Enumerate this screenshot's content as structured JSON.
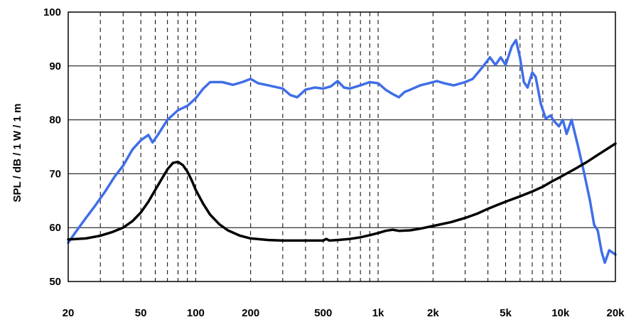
{
  "chart_data": {
    "type": "line",
    "xscale": "log",
    "xlim": [
      20,
      20000
    ],
    "ylim": [
      50,
      100
    ],
    "ylabel": "SPL / dB / 1 W / 1 m",
    "xlabel": "",
    "title": "",
    "grid": {
      "horizontal": "solid",
      "vertical_minor": "dashed"
    },
    "xtick_values": [
      20,
      50,
      100,
      200,
      500,
      1000,
      2000,
      5000,
      10000,
      20000
    ],
    "xtick_labels": [
      "20",
      "50",
      "100",
      "200",
      "500",
      "1k",
      "2k",
      "5k",
      "10k",
      "20k"
    ],
    "ytick_values": [
      50,
      60,
      70,
      80,
      90,
      100
    ],
    "ytick_labels": [
      "50",
      "60",
      "70",
      "80",
      "90",
      "100"
    ],
    "series": [
      {
        "color": "#3f6ee8",
        "points": [
          [
            20,
            57.2
          ],
          [
            22,
            59.2
          ],
          [
            25,
            61.8
          ],
          [
            28,
            64.0
          ],
          [
            32,
            66.8
          ],
          [
            36,
            69.5
          ],
          [
            40,
            71.5
          ],
          [
            45,
            74.5
          ],
          [
            50,
            76.2
          ],
          [
            55,
            77.2
          ],
          [
            58,
            75.8
          ],
          [
            62,
            77.2
          ],
          [
            70,
            80.0
          ],
          [
            80,
            81.8
          ],
          [
            90,
            82.6
          ],
          [
            100,
            84.0
          ],
          [
            110,
            85.8
          ],
          [
            120,
            87.0
          ],
          [
            140,
            87.0
          ],
          [
            160,
            86.5
          ],
          [
            180,
            87.0
          ],
          [
            200,
            87.6
          ],
          [
            220,
            86.8
          ],
          [
            250,
            86.4
          ],
          [
            300,
            85.8
          ],
          [
            330,
            84.6
          ],
          [
            360,
            84.2
          ],
          [
            400,
            85.6
          ],
          [
            450,
            86.0
          ],
          [
            500,
            85.8
          ],
          [
            550,
            86.2
          ],
          [
            600,
            87.2
          ],
          [
            650,
            86.0
          ],
          [
            700,
            85.8
          ],
          [
            800,
            86.4
          ],
          [
            900,
            87.0
          ],
          [
            1000,
            86.8
          ],
          [
            1100,
            85.6
          ],
          [
            1200,
            84.8
          ],
          [
            1300,
            84.2
          ],
          [
            1400,
            85.2
          ],
          [
            1500,
            85.6
          ],
          [
            1700,
            86.4
          ],
          [
            1900,
            86.8
          ],
          [
            2100,
            87.2
          ],
          [
            2300,
            86.8
          ],
          [
            2600,
            86.4
          ],
          [
            3000,
            87.0
          ],
          [
            3300,
            87.6
          ],
          [
            3700,
            89.6
          ],
          [
            4100,
            91.6
          ],
          [
            4400,
            90.2
          ],
          [
            4700,
            91.6
          ],
          [
            5000,
            90.2
          ],
          [
            5400,
            93.6
          ],
          [
            5700,
            94.8
          ],
          [
            6000,
            91.5
          ],
          [
            6300,
            87.0
          ],
          [
            6600,
            86.0
          ],
          [
            7000,
            88.8
          ],
          [
            7300,
            88.0
          ],
          [
            7800,
            83.0
          ],
          [
            8300,
            80.2
          ],
          [
            8800,
            80.8
          ],
          [
            9200,
            79.8
          ],
          [
            9800,
            78.8
          ],
          [
            10300,
            80.0
          ],
          [
            10800,
            77.4
          ],
          [
            11500,
            80.0
          ],
          [
            12500,
            75.0
          ],
          [
            13500,
            70.0
          ],
          [
            14500,
            65.0
          ],
          [
            15300,
            60.5
          ],
          [
            16000,
            59.5
          ],
          [
            16800,
            55.5
          ],
          [
            17500,
            53.5
          ],
          [
            18500,
            55.8
          ],
          [
            20000,
            55.0
          ]
        ]
      },
      {
        "color": "#000000",
        "points": [
          [
            20,
            57.8
          ],
          [
            25,
            58.0
          ],
          [
            30,
            58.5
          ],
          [
            35,
            59.2
          ],
          [
            40,
            60.0
          ],
          [
            45,
            61.2
          ],
          [
            50,
            62.8
          ],
          [
            55,
            64.8
          ],
          [
            60,
            67.0
          ],
          [
            65,
            69.0
          ],
          [
            70,
            70.8
          ],
          [
            75,
            72.0
          ],
          [
            80,
            72.2
          ],
          [
            85,
            71.6
          ],
          [
            90,
            70.4
          ],
          [
            95,
            68.8
          ],
          [
            100,
            67.0
          ],
          [
            110,
            64.4
          ],
          [
            120,
            62.4
          ],
          [
            135,
            60.6
          ],
          [
            150,
            59.5
          ],
          [
            175,
            58.5
          ],
          [
            200,
            58.0
          ],
          [
            250,
            57.7
          ],
          [
            300,
            57.6
          ],
          [
            400,
            57.6
          ],
          [
            500,
            57.6
          ],
          [
            520,
            57.9
          ],
          [
            540,
            57.6
          ],
          [
            600,
            57.7
          ],
          [
            700,
            57.9
          ],
          [
            800,
            58.2
          ],
          [
            900,
            58.6
          ],
          [
            1000,
            59.0
          ],
          [
            1100,
            59.4
          ],
          [
            1200,
            59.6
          ],
          [
            1300,
            59.4
          ],
          [
            1500,
            59.5
          ],
          [
            1700,
            59.8
          ],
          [
            2000,
            60.3
          ],
          [
            2500,
            61.0
          ],
          [
            3000,
            61.8
          ],
          [
            3500,
            62.6
          ],
          [
            4000,
            63.5
          ],
          [
            4500,
            64.2
          ],
          [
            5000,
            64.8
          ],
          [
            6000,
            65.8
          ],
          [
            7000,
            66.7
          ],
          [
            8000,
            67.6
          ],
          [
            9000,
            68.6
          ],
          [
            10000,
            69.4
          ],
          [
            12000,
            70.9
          ],
          [
            14000,
            72.2
          ],
          [
            16000,
            73.5
          ],
          [
            18000,
            74.6
          ],
          [
            20000,
            75.6
          ]
        ]
      }
    ]
  }
}
